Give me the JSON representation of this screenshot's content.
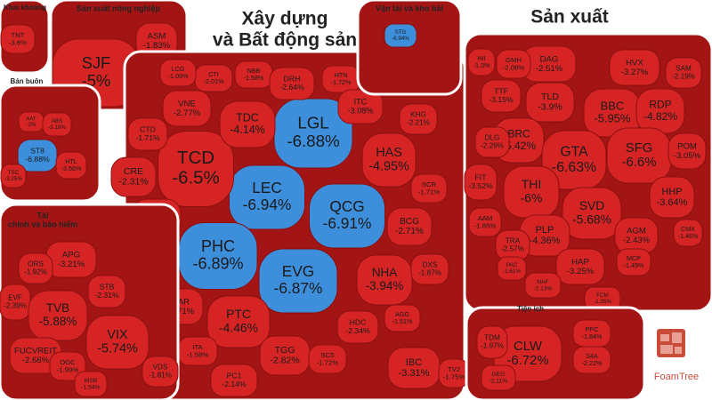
{
  "chart_data": {
    "type": "treemap",
    "logo": "FoamTree",
    "groups": [
      {
        "title": [
          "Khai khoáng"
        ],
        "categories": [
          "TNT"
        ],
        "values": [
          -3.6
        ],
        "value_labels": [
          "-3.6%"
        ],
        "colors": [
          "#d62424"
        ]
      },
      {
        "title": [
          "Sản xuất nông nghiệp"
        ],
        "categories": [
          "SJF",
          "ASM"
        ],
        "values": [
          -5,
          -1.83
        ],
        "value_labels": [
          "-5%",
          "-1.83%"
        ],
        "colors": [
          "#d62424",
          "#d62424"
        ]
      },
      {
        "title": [
          "Xây dựng",
          "và Bất động sản"
        ],
        "categories": [
          "LGL",
          "LEC",
          "QCG",
          "PHC",
          "EVG",
          "TCD",
          "TDC",
          "VNE",
          "CTI",
          "LCG",
          "NBB",
          "DRH",
          "HTN",
          "ITC",
          "HAS",
          "KHG",
          "CTD",
          "CRE",
          "HQC",
          "FIR",
          "HAR",
          "PTC",
          "ITA",
          "PC1",
          "TGG",
          "SC5",
          "HDC",
          "NHA",
          "BCG",
          "SCR",
          "DXS",
          "AGG",
          "IBC",
          "TV2"
        ],
        "values": [
          -6.88,
          -6.94,
          -6.91,
          -6.89,
          -6.87,
          -6.5,
          -4.14,
          -2.77,
          -2.01,
          -1.09,
          -1.58,
          -2.64,
          -1.72,
          -3.08,
          -4.95,
          -2.21,
          -1.71,
          -2.31,
          -3.28,
          -1.83,
          -2.71,
          -4.46,
          -1.58,
          -2.14,
          -2.82,
          -1.72,
          -2.34,
          -3.94,
          -2.71,
          -1.71,
          -1.87,
          -1.51,
          -3.31,
          -1.75
        ],
        "value_labels": [
          "-6.88%",
          "-6.94%",
          "-6.91%",
          "-6.89%",
          "-6.87%",
          "-6.5%",
          "-4.14%",
          "-2.77%",
          "-2.01%",
          "-1.09%",
          "-1.58%",
          "-2.64%",
          "-1.72%",
          "-3.08%",
          "-4.95%",
          "-2.21%",
          "-1.71%",
          "-2.31%",
          "-3.28%",
          "-1.83%",
          "-2.71%",
          "-4.46%",
          "-1.58%",
          "-2.14%",
          "-2.82%",
          "-1.72%",
          "-2.34%",
          "-3.94%",
          "-2.71%",
          "-1.71%",
          "-1.87%",
          "-1.51%",
          "-3.31%",
          "-1.75%"
        ],
        "colors": [
          "#3d8fdc",
          "#3d8fdc",
          "#3d8fdc",
          "#3d8fdc",
          "#3d8fdc",
          "#d62424",
          "#d62424",
          "#d62424",
          "#d62424",
          "#d62424",
          "#d62424",
          "#d62424",
          "#d62424",
          "#d62424",
          "#d62424",
          "#d62424",
          "#d62424",
          "#d62424",
          "#d62424",
          "#d62424",
          "#d62424",
          "#d62424",
          "#d62424",
          "#d62424",
          "#d62424",
          "#d62424",
          "#d62424",
          "#d62424",
          "#d62424",
          "#d62424",
          "#d62424",
          "#d62424",
          "#d62424",
          "#d62424"
        ]
      },
      {
        "title": [
          "Vận tải và kho bãi"
        ],
        "categories": [
          "STG"
        ],
        "values": [
          -6.94
        ],
        "value_labels": [
          "-6.94%"
        ],
        "colors": [
          "#3d8fdc"
        ]
      },
      {
        "title": [
          "Sản xuất"
        ],
        "categories": [
          "DAG",
          "HVX",
          "SAM",
          "GMH",
          "HII",
          "TLD",
          "BBC",
          "RDP",
          "TTF",
          "BRC",
          "GTA",
          "SFG",
          "POM",
          "DLG",
          "THI",
          "SVD",
          "HHP",
          "FIT",
          "PLP",
          "AGM",
          "AAM",
          "TRA",
          "CMX",
          "HAP",
          "MCP",
          "NAF",
          "PAC",
          "FCM"
        ],
        "values": [
          -2.51,
          -3.27,
          -2.19,
          -2.06,
          -1.3,
          -3.9,
          -5.95,
          -4.82,
          -3.15,
          -5.42,
          -6.63,
          -6.6,
          -3.05,
          -2.29,
          -6,
          -5.68,
          -3.64,
          -3.52,
          -4.36,
          -2.43,
          -1.85,
          -2.57,
          -1.46,
          -3.25,
          -1.49,
          -2.13,
          -1.61,
          -1.35
        ],
        "value_labels": [
          "-2.51%",
          "-3.27%",
          "-2.19%",
          "-2.06%",
          "-1.3%",
          "-3.9%",
          "-5.95%",
          "-4.82%",
          "-3.15%",
          "-5.42%",
          "-6.63%",
          "-6.6%",
          "-3.05%",
          "-2.29%",
          "-6%",
          "-5.68%",
          "-3.64%",
          "-3.52%",
          "-4.36%",
          "-2.43%",
          "-1.85%",
          "-2.57%",
          "-1.46%",
          "-3.25%",
          "-1.49%",
          "-2.13%",
          "-1.61%",
          "-1.35%"
        ],
        "colors": [
          "#d62424",
          "#d62424",
          "#d62424",
          "#d62424",
          "#d62424",
          "#d62424",
          "#d62424",
          "#d62424",
          "#d62424",
          "#d62424",
          "#d62424",
          "#d62424",
          "#d62424",
          "#d62424",
          "#d62424",
          "#d62424",
          "#d62424",
          "#d62424",
          "#d62424",
          "#d62424",
          "#d62424",
          "#d62424",
          "#d62424",
          "#d62424",
          "#d62424",
          "#d62424",
          "#d62424",
          "#d62424"
        ]
      },
      {
        "title": [
          "Tiện ích"
        ],
        "categories": [
          "CLW",
          "TDM",
          "PPC",
          "S4A",
          "GEG"
        ],
        "values": [
          -6.72,
          -1.97,
          -1.84,
          -2.22,
          -2.11
        ],
        "value_labels": [
          "-6.72%",
          "-1.97%",
          "-1.84%",
          "-2.22%",
          "-2.11%"
        ],
        "colors": [
          "#d62424",
          "#d62424",
          "#d62424",
          "#d62424",
          "#d62424"
        ]
      },
      {
        "title": [
          "Bán buôn"
        ],
        "categories": [
          "AAT",
          "ABS",
          "ST8",
          "HTL",
          "TSC"
        ],
        "values": [
          -2,
          -3.18,
          -6.88,
          -3.56,
          -3.25
        ],
        "value_labels": [
          "-2%",
          "-3.18%",
          "-6.88%",
          "-3.56%",
          "-3.25%"
        ],
        "colors": [
          "#d62424",
          "#d62424",
          "#3d8fdc",
          "#d62424",
          "#d62424"
        ]
      },
      {
        "title": [
          "Tài",
          "chính và bảo hiểm"
        ],
        "categories": [
          "APG",
          "ORS",
          "EVF",
          "STB",
          "TVB",
          "VIX",
          "FUCVREIT",
          "OGC",
          "MSB",
          "VDS"
        ],
        "values": [
          -3.21,
          -1.92,
          -2.39,
          -2.31,
          -5.88,
          -5.74,
          -2.66,
          -1.99,
          -1.54,
          -1.81
        ],
        "value_labels": [
          "-3.21%",
          "-1.92%",
          "-2.39%",
          "-2.31%",
          "-5.88%",
          "-5.74%",
          "-2.66%",
          "-1.99%",
          "-1.54%",
          "-1.81%"
        ],
        "colors": [
          "#d62424",
          "#d62424",
          "#d62424",
          "#d62424",
          "#d62424",
          "#d62424",
          "#d62424",
          "#d62424",
          "#d62424",
          "#d62424"
        ]
      }
    ]
  }
}
